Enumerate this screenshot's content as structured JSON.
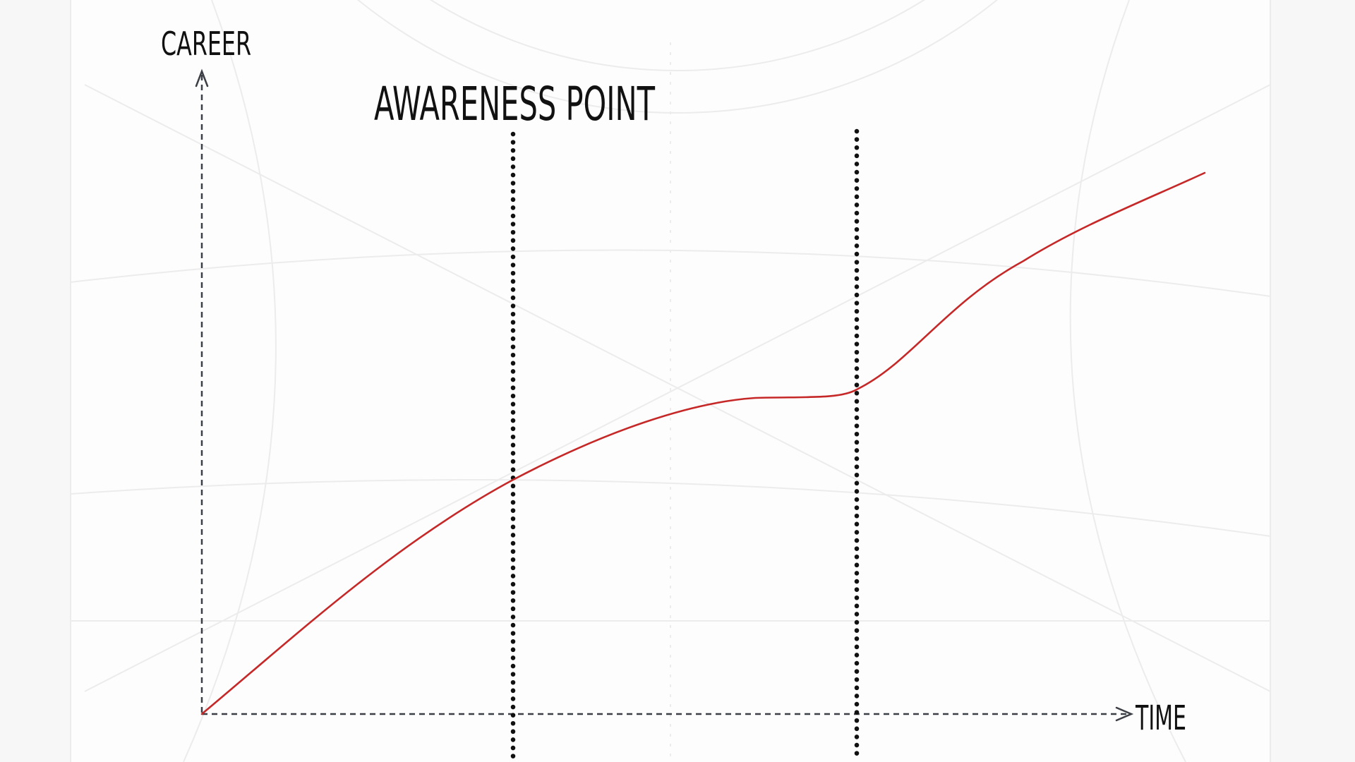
{
  "diagram": {
    "y_axis_label": "CAREER",
    "x_axis_label": "TIME",
    "marker_label": "AWARENESS POINT",
    "colors": {
      "curve": "#c62828",
      "axis": "#3c3f46",
      "marker_lines": "#111111",
      "text": "#111111",
      "background": "#fdfdfd",
      "backdrop_lines": "#ececec"
    }
  }
}
